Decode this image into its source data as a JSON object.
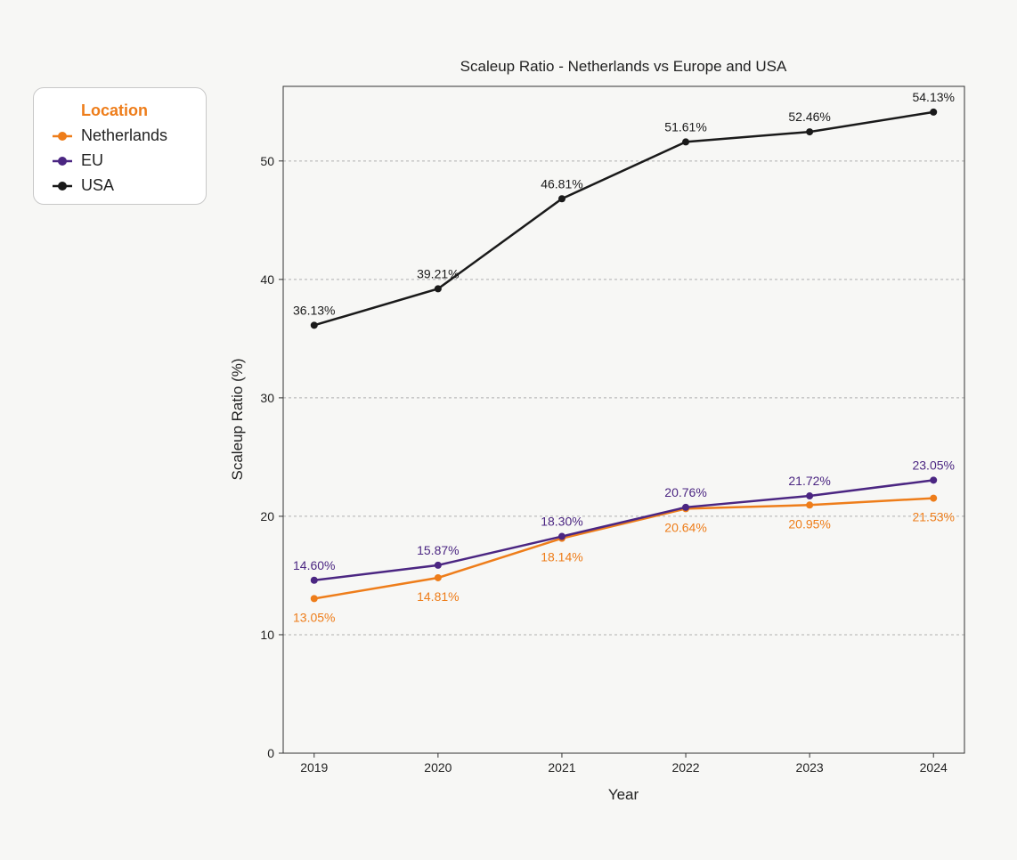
{
  "chart_data": {
    "type": "line",
    "title": "Scaleup Ratio - Netherlands vs Europe and USA",
    "xlabel": "Year",
    "ylabel": "Scaleup Ratio (%)",
    "x": [
      "2019",
      "2020",
      "2021",
      "2022",
      "2023",
      "2024"
    ],
    "xlim": [
      2018.75,
      2024.25
    ],
    "ylim": [
      0,
      56.3
    ],
    "yticks": [
      0,
      10,
      20,
      30,
      40,
      50
    ],
    "grid": "horizontal dashed",
    "legend": {
      "title": "Location",
      "position": "outside-top-left"
    },
    "series": [
      {
        "name": "Netherlands",
        "color": "#ee7d1a",
        "values": [
          13.05,
          14.81,
          18.14,
          20.64,
          20.95,
          21.53
        ],
        "labels": [
          "13.05%",
          "14.81%",
          "18.14%",
          "20.64%",
          "20.95%",
          "21.53%"
        ],
        "label_position": "below"
      },
      {
        "name": "EU",
        "color": "#4b2682",
        "values": [
          14.6,
          15.87,
          18.3,
          20.76,
          21.72,
          23.05
        ],
        "labels": [
          "14.60%",
          "15.87%",
          "18.30%",
          "20.76%",
          "21.72%",
          "23.05%"
        ],
        "label_position": "above"
      },
      {
        "name": "USA",
        "color": "#1a1a1a",
        "values": [
          36.13,
          39.21,
          46.81,
          51.61,
          52.46,
          54.13
        ],
        "labels": [
          "36.13%",
          "39.21%",
          "46.81%",
          "51.61%",
          "52.46%",
          "54.13%"
        ],
        "label_position": "above"
      }
    ]
  },
  "colors": {
    "background": "#f7f7f5",
    "legend_title": "#ee7d1a",
    "grid": "#b0b0b0"
  }
}
